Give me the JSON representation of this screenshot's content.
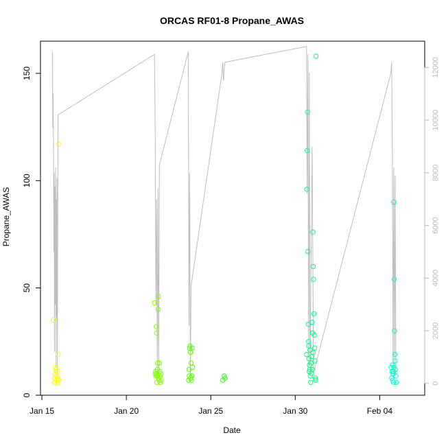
{
  "chart_data": {
    "type": "scatter",
    "title": "ORCAS RF01-8 Propane_AWAS",
    "xlabel": "Date",
    "ylabel": "Propane_AWAS",
    "x_ticks": [
      {
        "date": "2016-01-15",
        "label": "Jan 15"
      },
      {
        "date": "2016-01-20",
        "label": "Jan 20"
      },
      {
        "date": "2016-01-25",
        "label": "Jan 25"
      },
      {
        "date": "2016-01-30",
        "label": "Jan 30"
      },
      {
        "date": "2016-02-04",
        "label": "Feb 04"
      }
    ],
    "xlim": [
      "2016-01-14T22:00",
      "2016-02-06T16:00"
    ],
    "ylim": [
      0,
      165
    ],
    "y_ticks": [
      0,
      50,
      100,
      150
    ],
    "y2_ticks": [
      0,
      2000,
      4000,
      6000,
      8000,
      10000,
      12000
    ],
    "y2lim": [
      -450,
      13000
    ],
    "colors": {
      "rf01": "#ffff00",
      "rf02": "#80ff00",
      "rf03": "#55ff00",
      "rf04": "#2bff20",
      "rf05": "#00ff80",
      "rf06": "#00ffd0",
      "altitude_line": "#bebebe",
      "axis": "#000000",
      "secondary_axis": "#b9b9b9"
    },
    "series": [
      {
        "color_key": "rf01",
        "points": [
          [
            "2016-01-15T16:00",
            35
          ],
          [
            "2016-01-15T18:00",
            6
          ],
          [
            "2016-01-15T18:30",
            8
          ],
          [
            "2016-01-15T19:00",
            10
          ],
          [
            "2016-01-15T19:30",
            13
          ],
          [
            "2016-01-15T20:00",
            12
          ],
          [
            "2016-01-15T20:30",
            9
          ],
          [
            "2016-01-15T21:00",
            7
          ],
          [
            "2016-01-15T21:30",
            11
          ],
          [
            "2016-01-15T22:00",
            8
          ],
          [
            "2016-01-15T22:30",
            6
          ],
          [
            "2016-01-15T23:00",
            19
          ],
          [
            "2016-01-15T23:30",
            117
          ],
          [
            "2016-01-16T00:00",
            7
          ]
        ]
      },
      {
        "color_key": "rf02",
        "points": [
          [
            "2016-01-21T16:00",
            43
          ],
          [
            "2016-01-21T17:00",
            10
          ],
          [
            "2016-01-21T17:30",
            11
          ],
          [
            "2016-01-21T18:00",
            9
          ],
          [
            "2016-01-21T18:30",
            32
          ],
          [
            "2016-01-21T19:00",
            29
          ],
          [
            "2016-01-21T19:30",
            6
          ],
          [
            "2016-01-21T20:00",
            12
          ],
          [
            "2016-01-21T20:30",
            15
          ],
          [
            "2016-01-21T21:00",
            40
          ],
          [
            "2016-01-21T21:30",
            46
          ],
          [
            "2016-01-21T22:00",
            8
          ],
          [
            "2016-01-21T22:30",
            7
          ],
          [
            "2016-01-21T23:00",
            15
          ],
          [
            "2016-01-21T23:30",
            11
          ],
          [
            "2016-01-22T00:00",
            9
          ],
          [
            "2016-01-22T00:30",
            6
          ],
          [
            "2016-01-22T01:00",
            10
          ],
          [
            "2016-01-22T01:30",
            7
          ],
          [
            "2016-01-21T19:15",
            10
          ],
          [
            "2016-01-21T20:15",
            9
          ]
        ]
      },
      {
        "color_key": "rf03",
        "points": [
          [
            "2016-01-23T16:30",
            7
          ],
          [
            "2016-01-23T17:00",
            12
          ],
          [
            "2016-01-23T17:30",
            9
          ],
          [
            "2016-01-23T18:00",
            22
          ],
          [
            "2016-01-23T18:30",
            23
          ],
          [
            "2016-01-23T19:00",
            20
          ],
          [
            "2016-01-23T19:30",
            8
          ],
          [
            "2016-01-23T20:00",
            15
          ],
          [
            "2016-01-23T20:30",
            7
          ],
          [
            "2016-01-23T21:00",
            9
          ],
          [
            "2016-01-23T21:30",
            22
          ],
          [
            "2016-01-23T22:00",
            13
          ]
        ]
      },
      {
        "color_key": "rf04",
        "points": [
          [
            "2016-01-25T17:00",
            7
          ],
          [
            "2016-01-25T19:00",
            9
          ],
          [
            "2016-01-25T20:00",
            8
          ]
        ]
      },
      {
        "color_key": "rf05",
        "points": [
          [
            "2016-01-30T16:00",
            19
          ],
          [
            "2016-01-30T16:30",
            96
          ],
          [
            "2016-01-30T17:00",
            114
          ],
          [
            "2016-01-30T17:30",
            132
          ],
          [
            "2016-01-30T18:00",
            67
          ],
          [
            "2016-01-30T18:30",
            33
          ],
          [
            "2016-01-30T19:00",
            25
          ],
          [
            "2016-01-30T19:30",
            17
          ],
          [
            "2016-01-30T20:00",
            11
          ],
          [
            "2016-01-30T20:30",
            12
          ],
          [
            "2016-01-30T21:00",
            21
          ],
          [
            "2016-01-30T21:30",
            9
          ],
          [
            "2016-01-30T22:00",
            6
          ],
          [
            "2016-01-30T22:30",
            15
          ],
          [
            "2016-01-30T23:00",
            10
          ],
          [
            "2016-01-30T23:30",
            18
          ],
          [
            "2016-01-31T00:00",
            34
          ],
          [
            "2016-01-31T00:30",
            29
          ],
          [
            "2016-01-31T01:00",
            76
          ],
          [
            "2016-01-31T01:30",
            60
          ],
          [
            "2016-01-31T02:00",
            54
          ],
          [
            "2016-01-31T02:30",
            38
          ],
          [
            "2016-01-31T03:00",
            28
          ],
          [
            "2016-01-31T03:30",
            22
          ],
          [
            "2016-01-31T04:00",
            16
          ],
          [
            "2016-01-31T04:30",
            8
          ],
          [
            "2016-01-31T05:00",
            7
          ],
          [
            "2016-01-31T05:30",
            158
          ],
          [
            "2016-01-30T19:15",
            23
          ],
          [
            "2016-01-30T20:15",
            14
          ],
          [
            "2016-01-31T00:15",
            12
          ],
          [
            "2016-01-31T01:15",
            20
          ]
        ]
      },
      {
        "color_key": "rf06",
        "points": [
          [
            "2016-02-04T16:00",
            13
          ],
          [
            "2016-02-04T17:00",
            8
          ],
          [
            "2016-02-04T17:30",
            11
          ],
          [
            "2016-02-04T18:00",
            14
          ],
          [
            "2016-02-04T18:30",
            7
          ],
          [
            "2016-02-04T19:00",
            10
          ],
          [
            "2016-02-04T19:30",
            6
          ],
          [
            "2016-02-04T20:00",
            90
          ],
          [
            "2016-02-04T20:30",
            54
          ],
          [
            "2016-02-04T21:00",
            30
          ],
          [
            "2016-02-04T21:30",
            19
          ],
          [
            "2016-02-04T22:00",
            16
          ],
          [
            "2016-02-04T22:30",
            12
          ],
          [
            "2016-02-04T23:00",
            9
          ],
          [
            "2016-02-04T23:30",
            6
          ],
          [
            "2016-02-04T19:15",
            11
          ],
          [
            "2016-02-04T20:15",
            13
          ]
        ]
      }
    ],
    "secondary_line": {
      "color_key": "altitude_line",
      "points": [
        [
          "2016-01-15T15:00",
          12600
        ],
        [
          "2016-01-15T15:30",
          9700
        ],
        [
          "2016-01-15T16:00",
          11000
        ],
        [
          "2016-01-15T16:30",
          9000
        ],
        [
          "2016-01-15T17:00",
          5000
        ],
        [
          "2016-01-15T17:30",
          8000
        ],
        [
          "2016-01-15T18:00",
          1200
        ],
        [
          "2016-01-15T18:30",
          7500
        ],
        [
          "2016-01-15T19:00",
          3000
        ],
        [
          "2016-01-15T19:30",
          8200
        ],
        [
          "2016-01-15T20:00",
          600
        ],
        [
          "2016-01-15T20:30",
          7000
        ],
        [
          "2016-01-15T21:00",
          2500
        ],
        [
          "2016-01-15T21:30",
          7800
        ],
        [
          "2016-01-15T22:00",
          400
        ],
        [
          "2016-01-15T23:00",
          10200
        ],
        [
          "2016-01-21T16:00",
          12500
        ],
        [
          "2016-01-21T17:00",
          9500
        ],
        [
          "2016-01-21T18:00",
          3000
        ],
        [
          "2016-01-21T19:00",
          7000
        ],
        [
          "2016-01-21T20:00",
          500
        ],
        [
          "2016-01-21T21:00",
          7400
        ],
        [
          "2016-01-21T22:00",
          300
        ],
        [
          "2016-01-21T23:00",
          8300
        ],
        [
          "2016-01-23T16:00",
          12600
        ],
        [
          "2016-01-23T17:00",
          2200
        ],
        [
          "2016-01-23T18:00",
          8000
        ],
        [
          "2016-01-23T19:00",
          300
        ],
        [
          "2016-01-23T20:00",
          3700
        ],
        [
          "2016-01-25T16:00",
          11800
        ],
        [
          "2016-01-25T17:00",
          12200
        ],
        [
          "2016-01-25T18:00",
          11500
        ],
        [
          "2016-01-25T20:00",
          12200
        ],
        [
          "2016-01-30T16:00",
          12800
        ],
        [
          "2016-01-30T17:00",
          7200
        ],
        [
          "2016-01-30T18:00",
          12500
        ],
        [
          "2016-01-30T19:00",
          600
        ],
        [
          "2016-01-30T20:00",
          11800
        ],
        [
          "2016-01-30T21:00",
          300
        ],
        [
          "2016-01-31T00:00",
          9000
        ],
        [
          "2016-01-31T02:00",
          400
        ],
        [
          "2016-02-04T16:00",
          11800
        ],
        [
          "2016-02-04T17:00",
          12200
        ],
        [
          "2016-02-04T18:00",
          9000
        ],
        [
          "2016-02-04T19:00",
          700
        ],
        [
          "2016-02-04T20:00",
          8200
        ],
        [
          "2016-02-04T21:00",
          500
        ],
        [
          "2016-02-04T22:00",
          7900
        ],
        [
          "2016-02-04T23:00",
          300
        ]
      ]
    },
    "grid": false,
    "legend": "none"
  }
}
